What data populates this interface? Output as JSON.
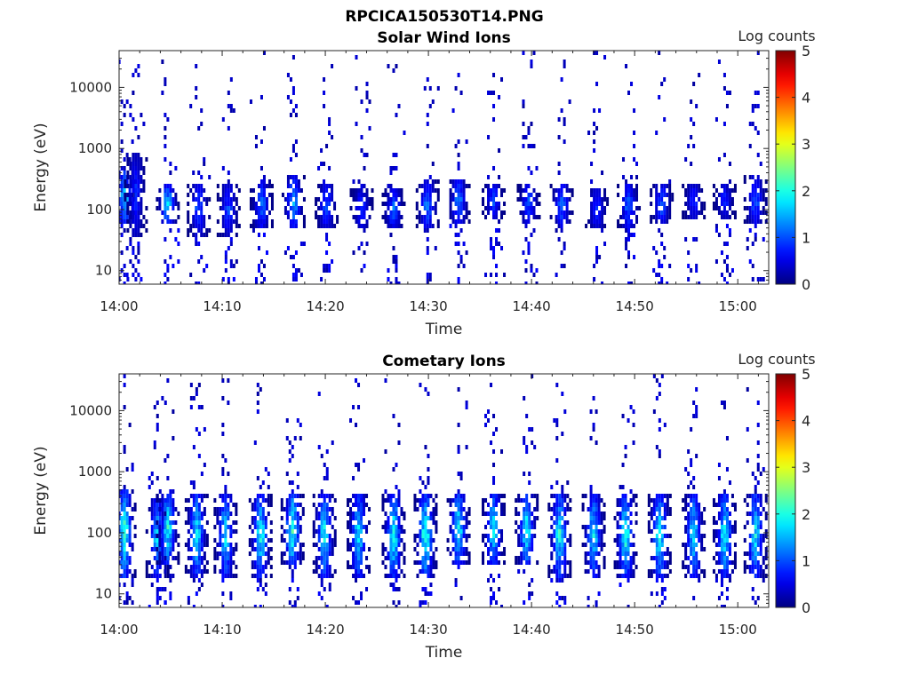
{
  "figure_title": "RPCICA150530T14.PNG",
  "chart_data": [
    {
      "type": "heatmap",
      "title": "Solar Wind Ions",
      "xlabel": "Time",
      "ylabel": "Energy (eV)",
      "x_scale": "time",
      "y_scale": "log",
      "xlim": [
        "14:00",
        "15:03"
      ],
      "ylim": [
        6,
        40000
      ],
      "x_ticks": [
        "14:00",
        "14:10",
        "14:20",
        "14:30",
        "14:40",
        "14:50",
        "15:00"
      ],
      "y_ticks": [
        10,
        100,
        1000,
        10000
      ],
      "y_tick_labels": [
        "10",
        "100",
        "1000",
        "10000"
      ],
      "colorbar": {
        "label": "Log counts",
        "range": [
          0,
          5
        ],
        "ticks": [
          "0",
          "1",
          "2",
          "3",
          "4",
          "5"
        ],
        "colormap": "jet"
      },
      "bursts": [
        {
          "t": "14:00.4",
          "core": [
            60,
            500
          ],
          "peak": 2.0
        },
        {
          "t": "14:01.5",
          "core": [
            40,
            1000
          ],
          "peak": 1.0
        },
        {
          "t": "14:04.6",
          "core": [
            60,
            300
          ],
          "peak": 2.0
        },
        {
          "t": "14:07.6",
          "core": [
            40,
            300
          ],
          "peak": 1.3
        },
        {
          "t": "14:10.5",
          "core": [
            40,
            300
          ],
          "peak": 1.2
        },
        {
          "t": "14:13.7",
          "core": [
            50,
            350
          ],
          "peak": 1.4
        },
        {
          "t": "14:16.8",
          "core": [
            50,
            400
          ],
          "peak": 1.8
        },
        {
          "t": "14:20.0",
          "core": [
            50,
            300
          ],
          "peak": 1.3
        },
        {
          "t": "14:23.4",
          "core": [
            50,
            250
          ],
          "peak": 1.1
        },
        {
          "t": "14:26.5",
          "core": [
            50,
            250
          ],
          "peak": 1.4
        },
        {
          "t": "14:29.8",
          "core": [
            50,
            350
          ],
          "peak": 1.5
        },
        {
          "t": "14:32.8",
          "core": [
            60,
            350
          ],
          "peak": 1.6
        },
        {
          "t": "14:36.2",
          "core": [
            80,
            300
          ],
          "peak": 1.3
        },
        {
          "t": "14:39.6",
          "core": [
            60,
            300
          ],
          "peak": 1.3
        },
        {
          "t": "14:42.8",
          "core": [
            60,
            300
          ],
          "peak": 1.5
        },
        {
          "t": "14:46.2",
          "core": [
            50,
            250
          ],
          "peak": 1.1
        },
        {
          "t": "14:49.3",
          "core": [
            50,
            300
          ],
          "peak": 1.4
        },
        {
          "t": "14:52.5",
          "core": [
            60,
            300
          ],
          "peak": 1.3
        },
        {
          "t": "14:55.6",
          "core": [
            70,
            300
          ],
          "peak": 1.0
        },
        {
          "t": "14:58.6",
          "core": [
            80,
            300
          ],
          "peak": 1.0
        },
        {
          "t": "15:01.6",
          "core": [
            60,
            400
          ],
          "peak": 1.4
        }
      ]
    },
    {
      "type": "heatmap",
      "title": "Cometary Ions",
      "xlabel": "Time",
      "ylabel": "Energy (eV)",
      "x_scale": "time",
      "y_scale": "log",
      "xlim": [
        "14:00",
        "15:03"
      ],
      "ylim": [
        6,
        40000
      ],
      "x_ticks": [
        "14:00",
        "14:10",
        "14:20",
        "14:30",
        "14:40",
        "14:50",
        "15:00"
      ],
      "y_ticks": [
        10,
        100,
        1000,
        10000
      ],
      "y_tick_labels": [
        "10",
        "100",
        "1000",
        "10000"
      ],
      "colorbar": {
        "label": "Log counts",
        "range": [
          0,
          5
        ],
        "ticks": [
          "0",
          "1",
          "2",
          "3",
          "4",
          "5"
        ],
        "colormap": "jet"
      },
      "bursts": [
        {
          "t": "14:00.4",
          "core": [
            20,
            600
          ],
          "peak": 2.6
        },
        {
          "t": "14:03.6",
          "core": [
            20,
            400
          ],
          "peak": 2.0
        },
        {
          "t": "14:04.6",
          "core": [
            30,
            500
          ],
          "peak": 2.4
        },
        {
          "t": "14:07.4",
          "core": [
            20,
            500
          ],
          "peak": 2.3
        },
        {
          "t": "14:10.2",
          "core": [
            20,
            500
          ],
          "peak": 2.2
        },
        {
          "t": "14:13.6",
          "core": [
            20,
            500
          ],
          "peak": 2.4
        },
        {
          "t": "14:16.7",
          "core": [
            30,
            500
          ],
          "peak": 2.7
        },
        {
          "t": "14:19.8",
          "core": [
            20,
            500
          ],
          "peak": 2.3
        },
        {
          "t": "14:23.1",
          "core": [
            20,
            500
          ],
          "peak": 2.2
        },
        {
          "t": "14:26.5",
          "core": [
            20,
            500
          ],
          "peak": 2.5
        },
        {
          "t": "14:29.6",
          "core": [
            20,
            500
          ],
          "peak": 2.6
        },
        {
          "t": "14:32.8",
          "core": [
            30,
            500
          ],
          "peak": 2.4
        },
        {
          "t": "14:36.2",
          "core": [
            30,
            500
          ],
          "peak": 2.3
        },
        {
          "t": "14:39.4",
          "core": [
            30,
            500
          ],
          "peak": 2.4
        },
        {
          "t": "14:42.6",
          "core": [
            20,
            500
          ],
          "peak": 2.4
        },
        {
          "t": "14:45.9",
          "core": [
            20,
            500
          ],
          "peak": 2.2
        },
        {
          "t": "14:49.0",
          "core": [
            20,
            500
          ],
          "peak": 2.5
        },
        {
          "t": "14:52.3",
          "core": [
            20,
            500
          ],
          "peak": 2.4
        },
        {
          "t": "14:55.6",
          "core": [
            20,
            500
          ],
          "peak": 2.2
        },
        {
          "t": "14:58.6",
          "core": [
            20,
            500
          ],
          "peak": 2.3
        },
        {
          "t": "15:01.6",
          "core": [
            20,
            500
          ],
          "peak": 2.3
        }
      ]
    }
  ]
}
